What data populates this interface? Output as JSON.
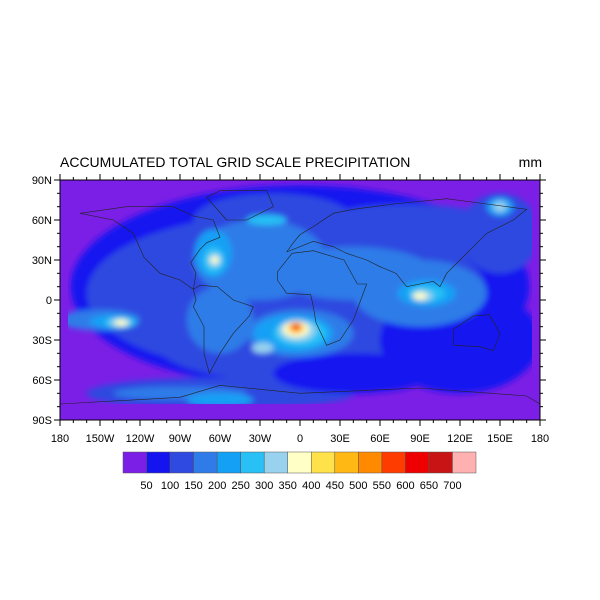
{
  "chart_data": {
    "type": "filled-contour-map",
    "title": "ACCUMULATED TOTAL GRID SCALE PRECIPITATION",
    "units": "mm",
    "projection": "cylindrical-equidistant",
    "lon_range": [
      -180,
      180
    ],
    "lat_range": [
      -90,
      90
    ],
    "x_tick_labels": [
      "180",
      "150W",
      "120W",
      "90W",
      "60W",
      "30W",
      "0",
      "30E",
      "60E",
      "90E",
      "120E",
      "150E",
      "180"
    ],
    "y_tick_labels": [
      "90N",
      "60N",
      "30N",
      "0",
      "30S",
      "60S",
      "90S"
    ],
    "contour_levels": [
      50,
      100,
      150,
      200,
      250,
      300,
      350,
      400,
      450,
      500,
      550,
      600,
      650,
      700
    ],
    "colorbar_labels": [
      "50",
      "100",
      "150",
      "200",
      "250",
      "300",
      "350",
      "400",
      "450",
      "500",
      "550",
      "600",
      "650",
      "700"
    ],
    "colors": [
      "#7b1fe6",
      "#1414f0",
      "#2e4ae0",
      "#2f7ce8",
      "#14a0f5",
      "#28c0f5",
      "#98d2ee",
      "#ffffc6",
      "#ffe24a",
      "#ffb814",
      "#ff8a00",
      "#ff3c00",
      "#ee0000",
      "#c81414",
      "#ffb0b0"
    ],
    "coastlines": true
  }
}
